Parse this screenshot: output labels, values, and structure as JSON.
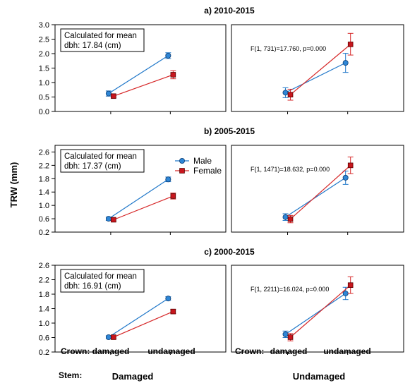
{
  "figure": {
    "y_axis_label": "TRW (mm)",
    "crown_label": "Crown:",
    "stem_label": "Stem:",
    "crown_categories": [
      "damaged",
      "undamaged"
    ],
    "stem_categories": [
      "Damaged",
      "Undamaged"
    ],
    "legend": {
      "male": "Male",
      "female": "Female"
    },
    "colors": {
      "male": "#1f77c9",
      "female": "#d62728",
      "male_fill": "#2e86d6",
      "female_fill": "#c8161d"
    }
  },
  "chart_data": [
    {
      "type": "line",
      "title": "a)  2010-2015",
      "ylim": [
        0,
        3.0
      ],
      "yticks": [
        "0.0",
        "0.5",
        "1.0",
        "1.5",
        "2.0",
        "2.5",
        "3.0"
      ],
      "note": [
        "Calculated for mean",
        "dbh: 17.84 (cm)"
      ],
      "stat": "F(1, 731)=17.760, p=0.000",
      "panels": [
        {
          "stem": "Damaged",
          "male": [
            {
              "x": "damaged",
              "y": 0.62,
              "lo": 0.53,
              "hi": 0.71
            },
            {
              "x": "undamaged",
              "y": 1.93,
              "lo": 1.83,
              "hi": 2.03
            }
          ],
          "female": [
            {
              "x": "damaged",
              "y": 0.53,
              "lo": 0.49,
              "hi": 0.58
            },
            {
              "x": "undamaged",
              "y": 1.27,
              "lo": 1.13,
              "hi": 1.41
            }
          ]
        },
        {
          "stem": "Undamaged",
          "male": [
            {
              "x": "damaged",
              "y": 0.65,
              "lo": 0.48,
              "hi": 0.82
            },
            {
              "x": "undamaged",
              "y": 1.68,
              "lo": 1.35,
              "hi": 2.01
            }
          ],
          "female": [
            {
              "x": "damaged",
              "y": 0.58,
              "lo": 0.39,
              "hi": 0.77
            },
            {
              "x": "undamaged",
              "y": 2.32,
              "lo": 1.95,
              "hi": 2.7
            }
          ]
        }
      ]
    },
    {
      "type": "line",
      "title": "b)  2005-2015",
      "ylim": [
        0.2,
        2.8
      ],
      "yticks": [
        "0.2",
        "0.6",
        "1.0",
        "1.4",
        "1.8",
        "2.2",
        "2.6"
      ],
      "note": [
        "Calculated for mean",
        "dbh: 17.37 (cm)"
      ],
      "stat": "F(1, 1471)=18.632, p=0.000",
      "panels": [
        {
          "stem": "Damaged",
          "male": [
            {
              "x": "damaged",
              "y": 0.6,
              "lo": 0.55,
              "hi": 0.65
            },
            {
              "x": "undamaged",
              "y": 1.78,
              "lo": 1.71,
              "hi": 1.85
            }
          ],
          "female": [
            {
              "x": "damaged",
              "y": 0.57,
              "lo": 0.53,
              "hi": 0.61
            },
            {
              "x": "undamaged",
              "y": 1.28,
              "lo": 1.19,
              "hi": 1.37
            }
          ]
        },
        {
          "stem": "Undamaged",
          "male": [
            {
              "x": "damaged",
              "y": 0.65,
              "lo": 0.55,
              "hi": 0.75
            },
            {
              "x": "undamaged",
              "y": 1.83,
              "lo": 1.63,
              "hi": 2.03
            }
          ],
          "female": [
            {
              "x": "damaged",
              "y": 0.59,
              "lo": 0.48,
              "hi": 0.7
            },
            {
              "x": "undamaged",
              "y": 2.2,
              "lo": 1.95,
              "hi": 2.45
            }
          ]
        }
      ]
    },
    {
      "type": "line",
      "title": "c)  2000-2015",
      "ylim": [
        0.2,
        2.6
      ],
      "yticks": [
        "0.2",
        "0.6",
        "1.0",
        "1.4",
        "1.8",
        "2.2",
        "2.6"
      ],
      "note": [
        "Calculated for mean",
        "dbh: 16.91 (cm)"
      ],
      "stat": "F(1, 2211)=16.024, p=0.000",
      "panels": [
        {
          "stem": "Damaged",
          "male": [
            {
              "x": "damaged",
              "y": 0.61,
              "lo": 0.57,
              "hi": 0.65
            },
            {
              "x": "undamaged",
              "y": 1.68,
              "lo": 1.63,
              "hi": 1.73
            }
          ],
          "female": [
            {
              "x": "damaged",
              "y": 0.61,
              "lo": 0.57,
              "hi": 0.65
            },
            {
              "x": "undamaged",
              "y": 1.32,
              "lo": 1.26,
              "hi": 1.38
            }
          ]
        },
        {
          "stem": "Undamaged",
          "male": [
            {
              "x": "damaged",
              "y": 0.69,
              "lo": 0.6,
              "hi": 0.78
            },
            {
              "x": "undamaged",
              "y": 1.82,
              "lo": 1.65,
              "hi": 1.99
            }
          ],
          "female": [
            {
              "x": "damaged",
              "y": 0.61,
              "lo": 0.51,
              "hi": 0.71
            },
            {
              "x": "undamaged",
              "y": 2.05,
              "lo": 1.82,
              "hi": 2.28
            }
          ]
        }
      ]
    }
  ]
}
